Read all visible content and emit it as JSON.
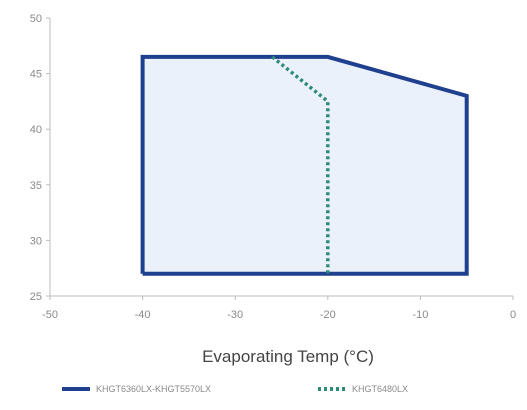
{
  "chart_data": {
    "type": "line",
    "title": "",
    "xlabel": "Evaporating Temp (°C)",
    "ylabel": "",
    "xlim": [
      -50,
      0
    ],
    "ylim": [
      25,
      50
    ],
    "x_ticks": [
      -50,
      -40,
      -30,
      -20,
      -10,
      0
    ],
    "x_tick_labels": [
      "-50",
      "-40",
      "-30",
      "-20",
      "-10",
      "0"
    ],
    "y_ticks": [
      25,
      30,
      35,
      40,
      45,
      50
    ],
    "y_tick_labels": [
      "25",
      "30",
      "35",
      "40",
      "45",
      "50"
    ],
    "grid": false,
    "legend_position": "bottom",
    "series": [
      {
        "name": "KHGT6360LX-KHGT5570LX",
        "style": "solid",
        "color": "#1f3f8f",
        "points": [
          [
            -40,
            27
          ],
          [
            -40,
            46.5
          ],
          [
            -20,
            46.5
          ],
          [
            -5,
            43
          ],
          [
            -5,
            27
          ],
          [
            -40,
            27
          ]
        ]
      },
      {
        "name": "KHGT6480LX",
        "style": "dashed",
        "color": "#2e8b78",
        "points": [
          [
            -26,
            46.5
          ],
          [
            -20,
            42.5
          ],
          [
            -20,
            27
          ]
        ]
      }
    ],
    "fill_color": "#eaf1fb"
  }
}
